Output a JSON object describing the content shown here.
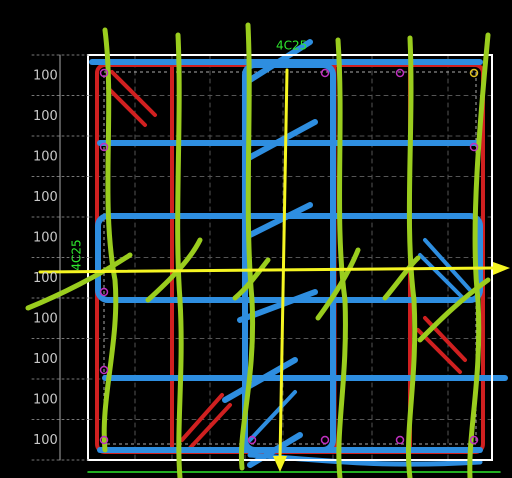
{
  "dimension_labels": [
    "100",
    "100",
    "100",
    "100",
    "100",
    "100",
    "100",
    "100",
    "100",
    "100"
  ],
  "annotations": {
    "top": "4C25",
    "left": "4C25"
  }
}
